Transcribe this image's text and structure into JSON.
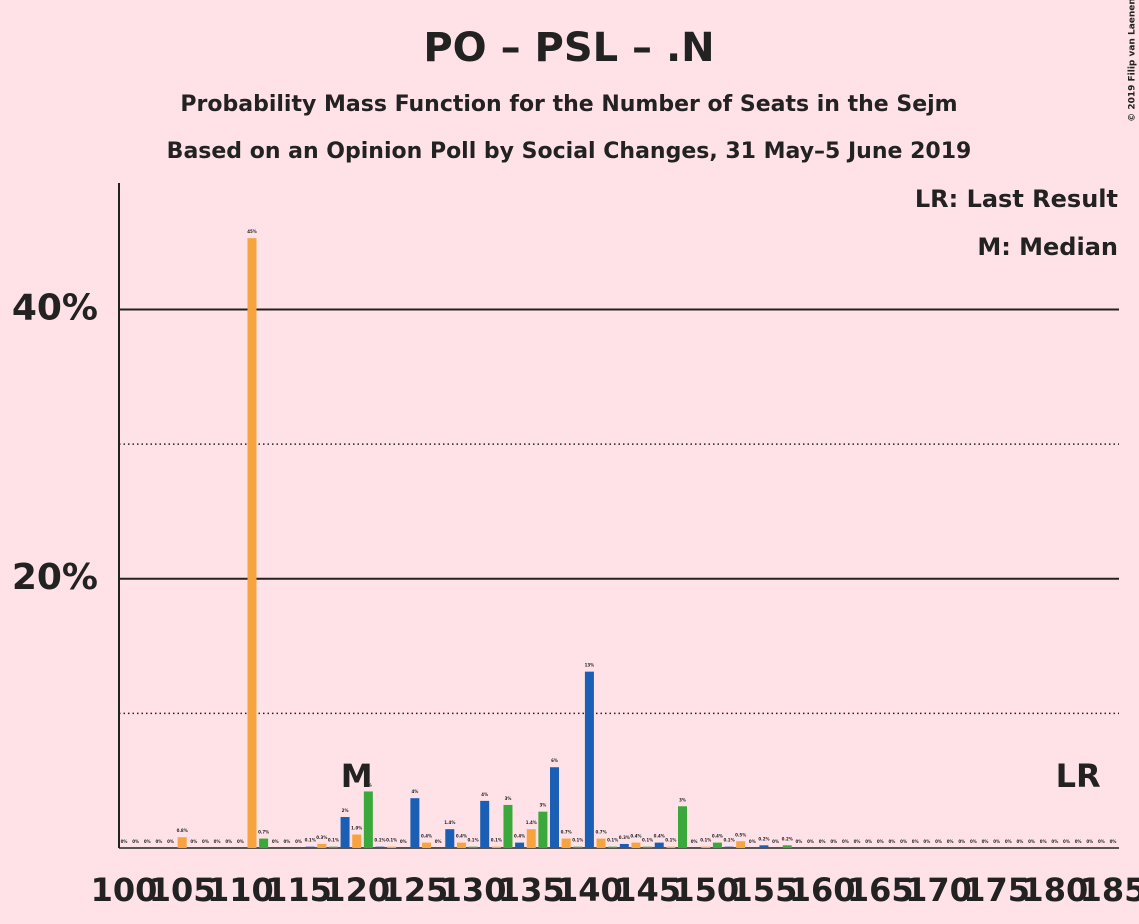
{
  "chart_data": {
    "type": "bar",
    "title": "PO – PSL – .N",
    "subtitle": "Probability Mass Function for the Number of Seats in the Sejm",
    "subtitle2": "Based on an Opinion Poll by Social Changes, 31 May–5 June 2019",
    "copyright": "© 2019 Filip van Laenen",
    "legend_notes": [
      "LR: Last Result",
      "M: Median"
    ],
    "annotations": [
      {
        "text": "M",
        "x": 120
      },
      {
        "text": "LR",
        "x": 182
      }
    ],
    "x": [
      100,
      101,
      102,
      103,
      104,
      105,
      106,
      107,
      108,
      109,
      110,
      111,
      112,
      113,
      114,
      115,
      116,
      117,
      118,
      119,
      120,
      121,
      122,
      123,
      124,
      125,
      126,
      127,
      128,
      129,
      130,
      131,
      132,
      133,
      134,
      135,
      136,
      137,
      138,
      139,
      140,
      141,
      142,
      143,
      144,
      145,
      146,
      147,
      148,
      149,
      150,
      151,
      152,
      153,
      154,
      155,
      156,
      157,
      158,
      159,
      160,
      161,
      162,
      163,
      164,
      165,
      166,
      167,
      168,
      169,
      170,
      171,
      172,
      173,
      174,
      175,
      176,
      177,
      178,
      179,
      180,
      181,
      182,
      183,
      184,
      185
    ],
    "values": [
      0,
      0,
      0,
      0,
      0,
      0.8,
      0,
      0,
      0,
      0,
      0,
      45.3,
      0.7,
      0,
      0,
      0,
      0.1,
      0.3,
      0.1,
      2.3,
      1.0,
      4.2,
      0.1,
      0.1,
      0,
      3.7,
      0.4,
      0,
      1.4,
      0.4,
      0.1,
      3.5,
      0.1,
      3.2,
      0.4,
      1.4,
      2.7,
      6.0,
      0.7,
      0.1,
      13.1,
      0.7,
      0.1,
      0.3,
      0.4,
      0.1,
      0.4,
      0.1,
      3.1,
      0,
      0.1,
      0.4,
      0.1,
      0.5,
      0,
      0.2,
      0,
      0.2,
      0,
      0,
      0,
      0,
      0,
      0,
      0,
      0,
      0,
      0,
      0,
      0,
      0,
      0,
      0,
      0,
      0,
      0,
      0,
      0,
      0,
      0,
      0,
      0,
      0,
      0,
      0,
      0
    ],
    "value_labels": [
      "0%",
      "0%",
      "0%",
      "0%",
      "0%",
      "0.8%",
      "0%",
      "0%",
      "0%",
      "0%",
      "0%",
      "45%",
      "0.7%",
      "0%",
      "0%",
      "0%",
      "0.1%",
      "0.3%",
      "0.1%",
      "2%",
      "1.0%",
      "4%",
      "0.1%",
      "0.1%",
      "0%",
      "4%",
      "0.4%",
      "0%",
      "1.4%",
      "0.4%",
      "0.1%",
      "4%",
      "0.1%",
      "3%",
      "0.4%",
      "1.4%",
      "3%",
      "6%",
      "0.7%",
      "0.1%",
      "13%",
      "0.7%",
      "0.1%",
      "0.3%",
      "0.4%",
      "0.1%",
      "0.4%",
      "0.1%",
      "3%",
      "0%",
      "0.1%",
      "0.4%",
      "0.1%",
      "0.5%",
      "0%",
      "0.2%",
      "0%",
      "0.2%",
      "0%",
      "0%",
      "0%",
      "0%",
      "0%",
      "0%",
      "0%",
      "0%",
      "0%",
      "0%",
      "0%",
      "0%",
      "0%",
      "0%",
      "0%",
      "0%",
      "0%",
      "0%",
      "0%",
      "0%",
      "0%",
      "0%",
      "0%",
      "0%",
      "0%",
      "0%",
      "0%",
      "0%"
    ],
    "color_cycle": [
      "#3aa83a",
      "#1a5fb4",
      "#f7a440"
    ],
    "xlim": [
      100,
      185
    ],
    "xticks": [
      100,
      105,
      110,
      115,
      120,
      125,
      130,
      135,
      140,
      145,
      150,
      155,
      160,
      165,
      170,
      175,
      180,
      185
    ],
    "ylim": [
      0,
      49.4
    ],
    "yticks": [
      {
        "value": 20,
        "label": "20%"
      },
      {
        "value": 40,
        "label": "40%"
      }
    ],
    "minor_yticks": [
      10,
      30
    ]
  }
}
